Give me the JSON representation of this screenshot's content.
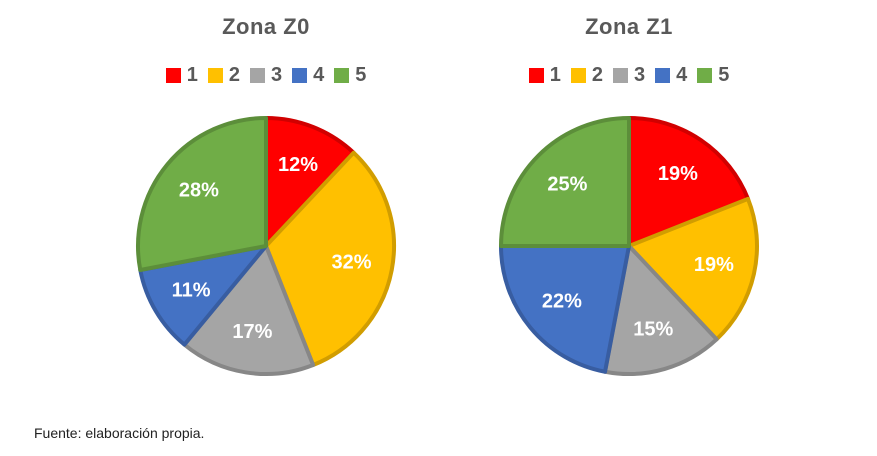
{
  "chart_data": [
    {
      "type": "pie",
      "title": "Zona Z0",
      "categories": [
        "1",
        "2",
        "3",
        "4",
        "5"
      ],
      "values": [
        12,
        32,
        17,
        11,
        28
      ],
      "labels": [
        "12%",
        "32%",
        "17%",
        "11%",
        "28%"
      ],
      "colors": [
        "#ff0000",
        "#ffc000",
        "#a5a5a5",
        "#4472c4",
        "#70ad47"
      ],
      "legend": "top"
    },
    {
      "type": "pie",
      "title": "Zona Z1",
      "categories": [
        "1",
        "2",
        "3",
        "4",
        "5"
      ],
      "values": [
        19,
        19,
        15,
        22,
        25
      ],
      "labels": [
        "19%",
        "19%",
        "15%",
        "22%",
        "25%"
      ],
      "colors": [
        "#ff0000",
        "#ffc000",
        "#a5a5a5",
        "#4472c4",
        "#70ad47"
      ],
      "legend": "top"
    }
  ],
  "source": "Fuente: elaboración propia."
}
